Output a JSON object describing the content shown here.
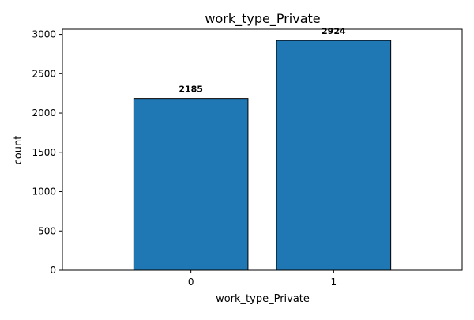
{
  "chart_data": {
    "type": "bar",
    "title": "work_type_Private",
    "xlabel": "work_type_Private",
    "ylabel": "count",
    "categories": [
      "0",
      "1"
    ],
    "values": [
      2185,
      2924
    ],
    "data_labels": [
      "2185",
      "2924"
    ],
    "ylim": [
      0,
      3066
    ],
    "yticks": [
      0,
      500,
      1000,
      1500,
      2000,
      2500,
      3000
    ],
    "ytick_labels": [
      "0",
      "500",
      "1000",
      "1500",
      "2000",
      "2500",
      "3000"
    ],
    "grid": false,
    "legend": "none",
    "bar_color": "#1f77b4",
    "bar_edge_color": "#000000"
  }
}
